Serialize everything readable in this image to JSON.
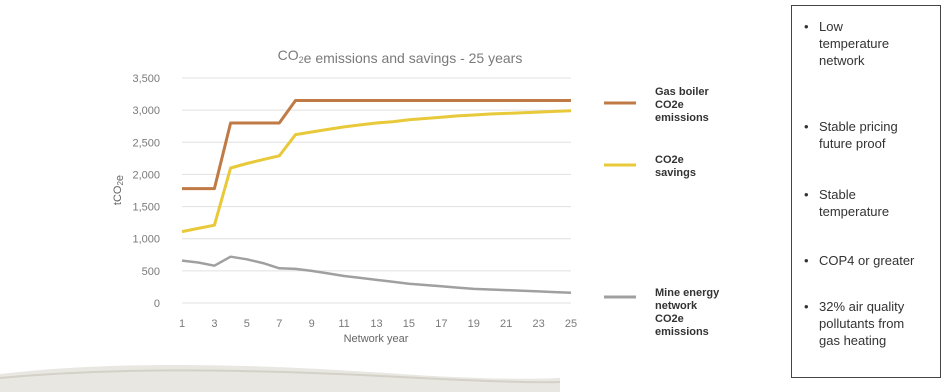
{
  "chart_data": {
    "type": "line",
    "title": "CO₂e emissions and savings - 25 years",
    "xlabel": "Network year",
    "ylabel": "tCO₂e",
    "ylim": [
      0,
      3500
    ],
    "xlim": [
      1,
      25
    ],
    "yticks": [
      "0",
      "500",
      "1,000",
      "1,500",
      "2,000",
      "2,500",
      "3,000",
      "3,500"
    ],
    "ytick_values": [
      0,
      500,
      1000,
      1500,
      2000,
      2500,
      3000,
      3500
    ],
    "xticks": [
      "1",
      "3",
      "5",
      "7",
      "9",
      "11",
      "13",
      "15",
      "17",
      "19",
      "21",
      "23",
      "25"
    ],
    "x": [
      1,
      2,
      3,
      4,
      5,
      6,
      7,
      8,
      9,
      10,
      11,
      12,
      13,
      14,
      15,
      16,
      17,
      18,
      19,
      20,
      21,
      22,
      23,
      24,
      25
    ],
    "grid": "horizontal",
    "series": [
      {
        "name_lines": [
          "Gas boiler",
          "CO2e",
          "emissions"
        ],
        "color": "#C07A45",
        "values": [
          1780,
          1780,
          1780,
          2800,
          2800,
          2800,
          2800,
          3150,
          3150,
          3150,
          3150,
          3150,
          3150,
          3150,
          3150,
          3150,
          3150,
          3150,
          3150,
          3150,
          3150,
          3150,
          3150,
          3150,
          3150
        ]
      },
      {
        "name_lines": [
          "CO2e",
          "savings"
        ],
        "color": "#E8C93A",
        "values": [
          1110,
          1160,
          1210,
          2100,
          2170,
          2230,
          2290,
          2620,
          2660,
          2700,
          2740,
          2770,
          2800,
          2820,
          2850,
          2870,
          2890,
          2910,
          2925,
          2940,
          2950,
          2960,
          2970,
          2980,
          2990
        ]
      },
      {
        "name_lines": [
          "Mine energy",
          "network",
          "CO2e",
          "emissions"
        ],
        "color": "#A0A0A0",
        "values": [
          660,
          630,
          580,
          720,
          680,
          620,
          540,
          530,
          500,
          460,
          420,
          390,
          360,
          330,
          300,
          280,
          260,
          240,
          220,
          210,
          200,
          190,
          180,
          170,
          160
        ]
      }
    ]
  },
  "bullets": [
    {
      "lines": [
        "Low",
        "temperature",
        "network"
      ]
    },
    {
      "lines": [
        "Stable pricing",
        "future proof"
      ]
    },
    {
      "lines": [
        "Stable",
        "temperature"
      ]
    },
    {
      "lines": [
        "COP4 or greater"
      ]
    },
    {
      "lines": [
        "32% air quality",
        "pollutants from",
        "gas heating"
      ]
    }
  ]
}
